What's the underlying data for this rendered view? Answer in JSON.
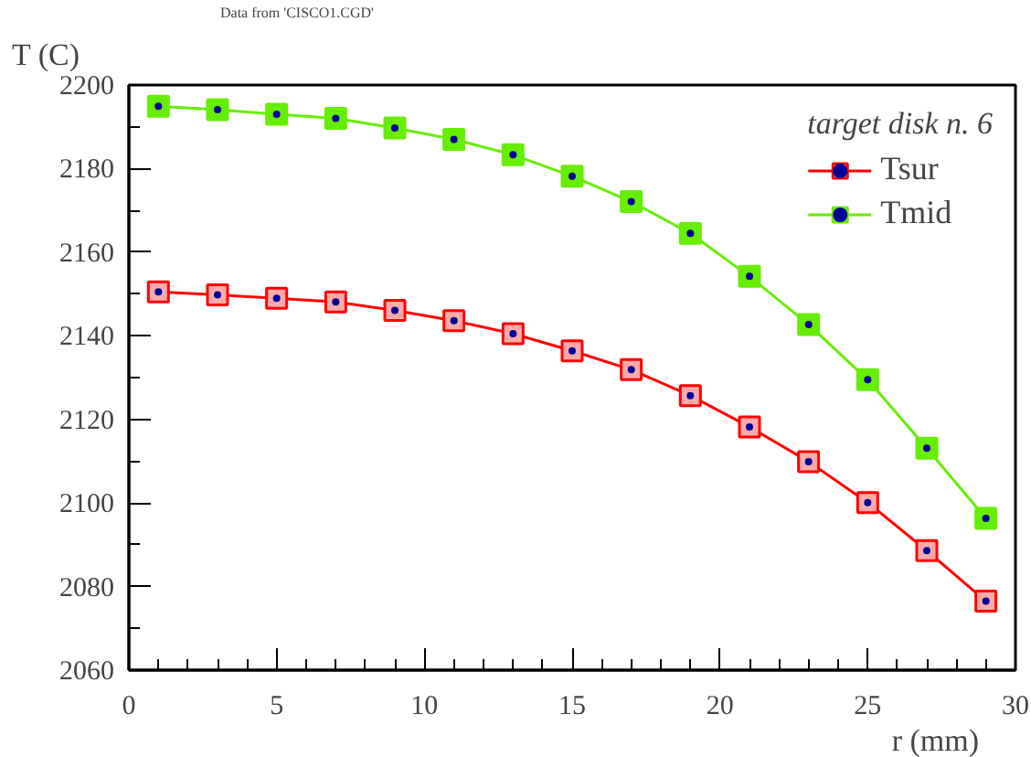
{
  "chart_data": {
    "type": "line",
    "legend_title": "target disk n. 6",
    "xlabel": "r (mm)",
    "ylabel": "T (C)",
    "annotations": [
      "Data from 'CISCO1.CGD'"
    ],
    "x": [
      1,
      3,
      5,
      7,
      9,
      11,
      13,
      15,
      17,
      19,
      21,
      23,
      25,
      27,
      29
    ],
    "series": [
      {
        "name": "Tsur",
        "color": "#ff0000",
        "values": [
          2150.5,
          2149.8,
          2149.0,
          2148.1,
          2146.1,
          2143.6,
          2140.5,
          2136.4,
          2131.9,
          2125.7,
          2118.2,
          2109.9,
          2100.1,
          2088.6,
          2076.5
        ]
      },
      {
        "name": "Tmid",
        "color": "#66ee00",
        "values": [
          2194.9,
          2194.1,
          2193.0,
          2192.0,
          2189.7,
          2187.0,
          2183.3,
          2178.2,
          2172.1,
          2164.5,
          2154.2,
          2142.7,
          2129.5,
          2113.1,
          2096.3
        ]
      }
    ],
    "xlim": [
      0,
      30
    ],
    "xticks": [
      0,
      5,
      10,
      15,
      20,
      25,
      30
    ],
    "ylim": [
      2060,
      2200
    ],
    "yticks": [
      2060,
      2080,
      2100,
      2120,
      2140,
      2160,
      2180,
      2200
    ],
    "grid": false,
    "legend": "top right",
    "marker": "square",
    "line_style": "solid"
  }
}
